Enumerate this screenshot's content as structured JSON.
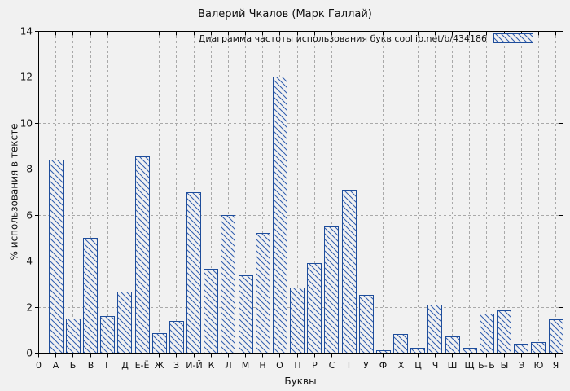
{
  "title": "Валерий Чкалов (Марк Галлай)",
  "legend": {
    "text": "Диаграмма частоты использования букв  coollib.net/b/434186",
    "position": "top-right",
    "swatch_style": "blue-diagonal-hatch"
  },
  "axes": {
    "x_label": "Буквы",
    "y_label": "% использования в тексте",
    "origin_tick_label": "0",
    "y_ticks": [
      0,
      2,
      4,
      6,
      8,
      10,
      12,
      14
    ]
  },
  "chart_data": {
    "type": "bar",
    "title": "Валерий Чкалов (Марк Галлай)",
    "categories": [
      "А",
      "Б",
      "В",
      "Г",
      "Д",
      "Е-Ё",
      "Ж",
      "З",
      "И-Й",
      "К",
      "Л",
      "М",
      "Н",
      "О",
      "П",
      "Р",
      "С",
      "Т",
      "У",
      "Ф",
      "Х",
      "Ц",
      "Ч",
      "Ш",
      "Щ",
      "Ь-Ъ",
      "Ы",
      "Э",
      "Ю",
      "Я"
    ],
    "values": [
      8.4,
      1.5,
      5.0,
      1.6,
      2.65,
      8.55,
      0.85,
      1.4,
      7.0,
      3.65,
      6.0,
      3.35,
      5.2,
      12.0,
      2.85,
      3.9,
      5.5,
      7.1,
      2.5,
      0.1,
      0.8,
      0.2,
      2.1,
      0.7,
      0.2,
      1.7,
      1.85,
      0.4,
      0.45,
      1.45
    ],
    "xlabel": "Буквы",
    "ylabel": "% использования в тексте",
    "ylim": [
      0,
      14
    ],
    "grid": true,
    "legend_label": "Диаграмма частоты использования букв  coollib.net/b/434186",
    "legend_position": "top-right",
    "bar_style": "hatched"
  },
  "colors": {
    "bar_outline": "#1e4d9b",
    "bar_hatch": "#2e5cae",
    "background": "#f1f1f1",
    "grid": "#a9a9a9",
    "axis": "#000000",
    "text": "#111111"
  }
}
